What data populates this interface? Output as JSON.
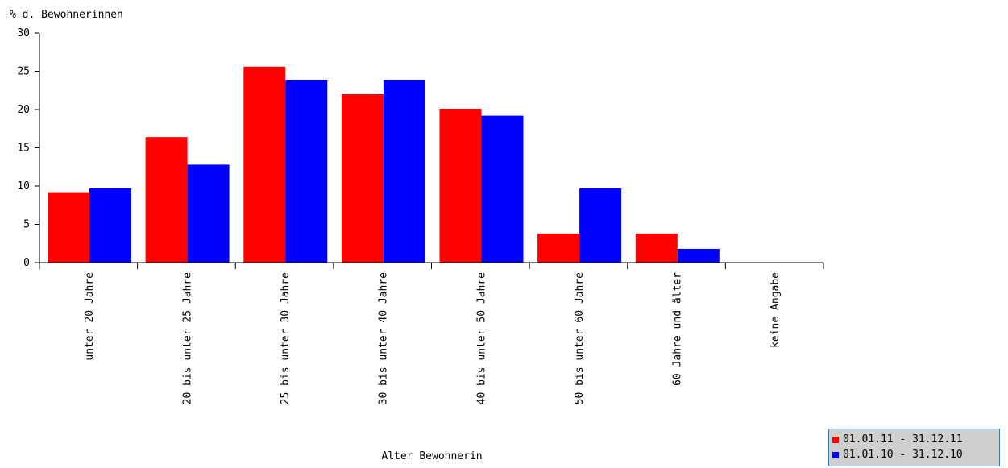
{
  "chart_data": {
    "type": "bar",
    "ylabel": "% d. Bewohnerinnen",
    "xlabel": "Alter Bewohnerin",
    "ylim": [
      0,
      30
    ],
    "yticks": [
      0,
      5,
      10,
      15,
      20,
      25,
      30
    ],
    "grid": false,
    "legend_position": "bottom-right",
    "categories": [
      "unter 20 Jahre",
      "20 bis unter 25 Jahre",
      "25 bis unter 30 Jahre",
      "30 bis unter 40 Jahre",
      "40 bis unter 50 Jahre",
      "50 bis unter 60 Jahre",
      "60 Jahre und älter",
      "keine Angabe"
    ],
    "series": [
      {
        "name": "01.01.11 - 31.12.11",
        "color": "#ff0000",
        "values": [
          9.2,
          16.4,
          25.6,
          22.0,
          20.1,
          3.8,
          3.8,
          0
        ]
      },
      {
        "name": "01.01.10 - 31.12.10",
        "color": "#0000ff",
        "values": [
          9.7,
          12.8,
          23.9,
          23.9,
          19.2,
          9.7,
          1.8,
          0
        ]
      }
    ]
  }
}
